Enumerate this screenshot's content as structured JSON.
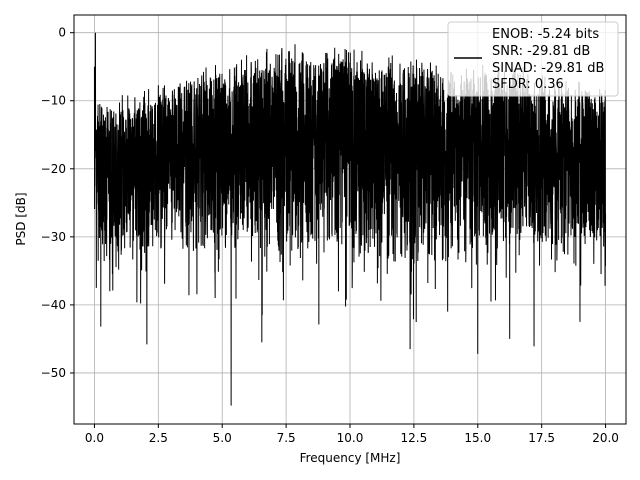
{
  "chart_data": {
    "type": "line",
    "title": "",
    "xlabel": "Frequency [MHz]",
    "ylabel": "PSD [dB]",
    "xlim": [
      -0.8,
      20.8
    ],
    "ylim": [
      -57.5,
      2.6
    ],
    "xticks": [
      0.0,
      2.5,
      5.0,
      7.5,
      10.0,
      12.5,
      15.0,
      17.5,
      20.0
    ],
    "xtick_labels": [
      "0.0",
      "2.5",
      "5.0",
      "7.5",
      "10.0",
      "12.5",
      "15.0",
      "17.5",
      "20.0"
    ],
    "yticks": [
      0,
      -10,
      -20,
      -30,
      -40,
      -50
    ],
    "ytick_labels": [
      "0",
      "−10",
      "−20",
      "−30",
      "−40",
      "−50"
    ],
    "grid": true,
    "line_color": "#000000",
    "legend": {
      "placement": "top-right",
      "entries": [
        "ENOB: -5.24 bits",
        "SNR: -29.81 dB",
        "SINAD: -29.81 dB",
        "SFDR: 0.36"
      ]
    },
    "series": [
      {
        "x_range": [
          0.0,
          20.0
        ],
        "num_points": 4096,
        "peak": {
          "x": 0.04,
          "y": 0.0
        },
        "envelope_upper": {
          "x": [
            0,
            2.5,
            5,
            7.5,
            10,
            12.5,
            15,
            17.5,
            20
          ],
          "y": [
            -12,
            -9,
            -6,
            -3,
            -4,
            -5,
            -6,
            -7,
            -9
          ]
        },
        "typical_lower": -33,
        "deep_dips": [
          {
            "x": 0.25,
            "y": -43.2
          },
          {
            "x": 2.05,
            "y": -45.8
          },
          {
            "x": 5.35,
            "y": -54.8
          },
          {
            "x": 6.55,
            "y": -45.5
          },
          {
            "x": 12.35,
            "y": -46.5
          },
          {
            "x": 15.0,
            "y": -47.2
          },
          {
            "x": 16.25,
            "y": -45.0
          },
          {
            "x": 17.2,
            "y": -46.1
          },
          {
            "x": 19.0,
            "y": -42.5
          }
        ]
      }
    ]
  }
}
